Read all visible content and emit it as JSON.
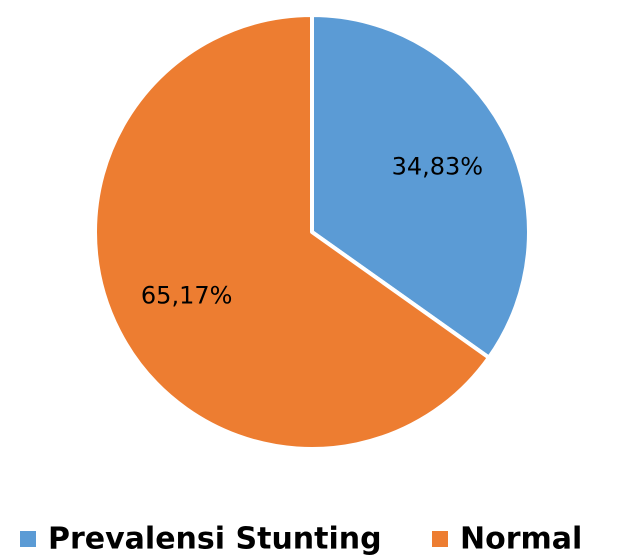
{
  "chart_data": {
    "type": "pie",
    "categories": [
      "Prevalensi Stunting",
      "Normal"
    ],
    "values": [
      34.83,
      65.17
    ],
    "value_labels": [
      "34,83%",
      "65,17%"
    ],
    "colors": [
      "#5b9bd5",
      "#ed7d31"
    ],
    "legend": "bottom"
  }
}
